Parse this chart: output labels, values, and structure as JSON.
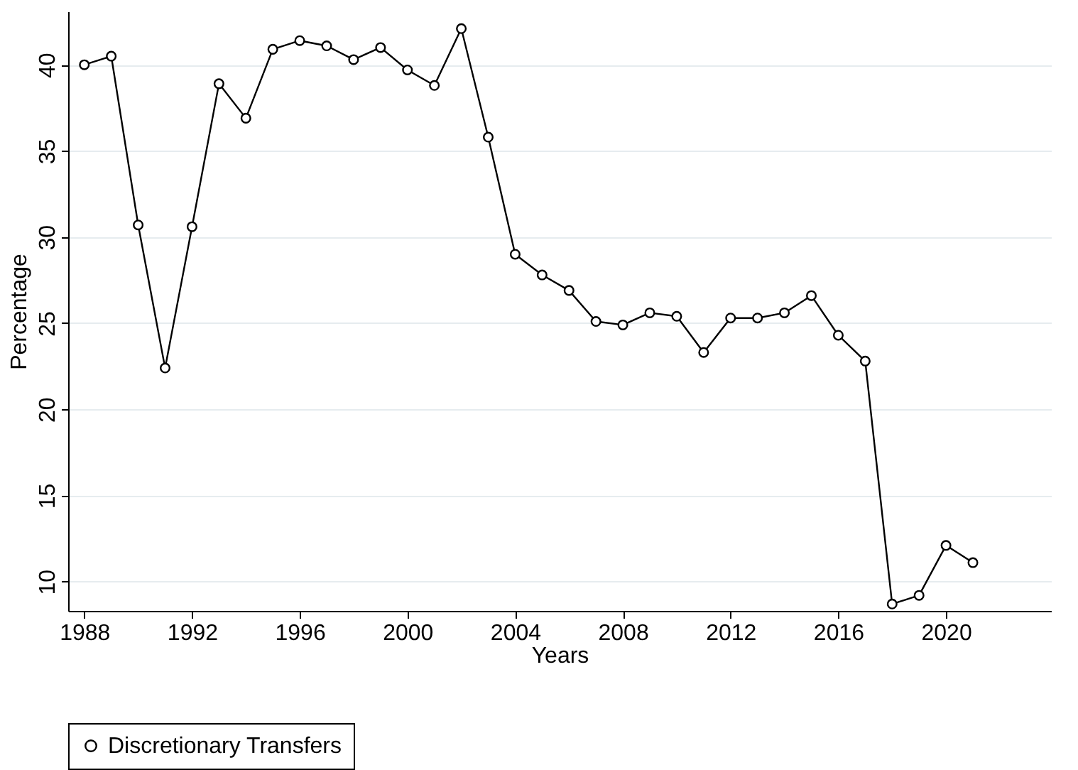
{
  "chart_data": {
    "type": "line",
    "xlabel": "Years",
    "ylabel": "Percentage",
    "x": [
      1988,
      1989,
      1990,
      1991,
      1992,
      1993,
      1994,
      1995,
      1996,
      1997,
      1998,
      1999,
      2000,
      2001,
      2002,
      2003,
      2004,
      2005,
      2006,
      2007,
      2008,
      2009,
      2010,
      2011,
      2012,
      2013,
      2014,
      2015,
      2016,
      2017,
      2018,
      2019,
      2020,
      2021
    ],
    "series": [
      {
        "name": "Discretionary Transfers",
        "color": "#000000",
        "values": [
          40.0,
          40.5,
          30.7,
          22.4,
          30.6,
          38.9,
          36.9,
          40.9,
          41.4,
          41.1,
          40.3,
          41.0,
          39.7,
          38.8,
          42.1,
          35.8,
          29.0,
          27.8,
          26.9,
          25.1,
          24.9,
          25.6,
          25.4,
          23.3,
          25.3,
          25.3,
          25.6,
          26.6,
          24.3,
          22.8,
          8.7,
          9.2,
          12.1,
          11.1
        ]
      }
    ],
    "xlim": [
      1987.4,
      2023.9
    ],
    "xticks": [
      1988,
      1992,
      1996,
      2000,
      2004,
      2008,
      2012,
      2016,
      2020
    ],
    "ylim": [
      8.3,
      43.1
    ],
    "yticks": [
      10,
      15,
      20,
      25,
      30,
      35,
      40
    ],
    "grid": "y",
    "legend": "bottom",
    "marker": "circle",
    "line_style": "solid"
  }
}
